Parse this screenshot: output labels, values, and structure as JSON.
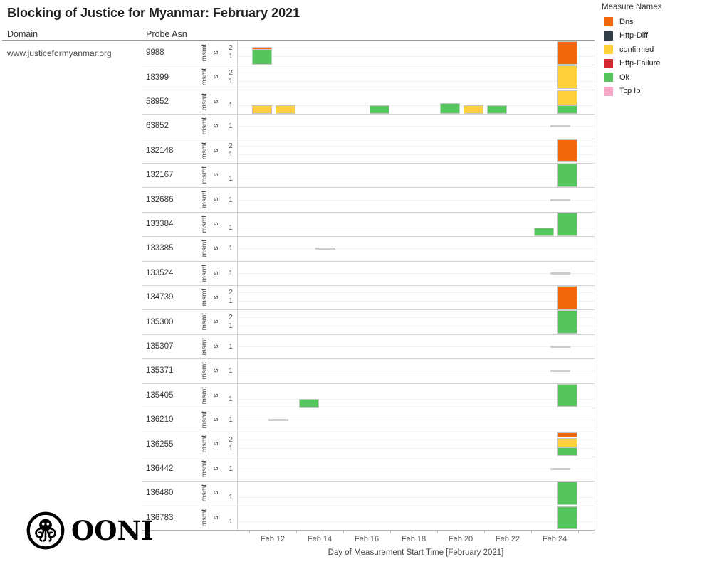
{
  "title": "Blocking of Justice for Myanmar: February 2021",
  "columns": {
    "domain_header": "Domain",
    "asn_header": "Probe Asn"
  },
  "domain": "www.justiceformyanmar.org",
  "y_axis_title_lines": [
    "msmt",
    "s"
  ],
  "x_axis": {
    "title": "Day of Measurement Start Time [February 2021]",
    "tick_labels": [
      "Feb 12",
      "Feb 14",
      "Feb 16",
      "Feb 18",
      "Feb 20",
      "Feb 22",
      "Feb 24"
    ],
    "labeled_days": [
      12,
      14,
      16,
      18,
      20,
      22,
      24
    ],
    "day_range": [
      11,
      25
    ]
  },
  "legend": {
    "title": "Measure Names",
    "items": [
      {
        "label": "Dns",
        "color": "#f3680d"
      },
      {
        "label": "Http-Diff",
        "color": "#333e48"
      },
      {
        "label": "confirmed",
        "color": "#fdd03c"
      },
      {
        "label": "Http-Failure",
        "color": "#d4262e"
      },
      {
        "label": "Ok",
        "color": "#55c55e"
      },
      {
        "label": "Tcp Ip",
        "color": "#f5a8c7"
      }
    ]
  },
  "logo_text": "OONI",
  "chart_data": {
    "type": "bar",
    "stacked": true,
    "title": "Blocking of Justice for Myanmar: February 2021",
    "xlabel": "Day of Measurement Start Time [February 2021]",
    "ylabel": "msmts",
    "x_unit": "day of February 2021",
    "note": "Small-multiple rows, one per Probe ASN; stacked bars count measurements per day; bars reaching full row height are clipped at the row top (value >= 2); gray dashes mark days with an empty/zero-height mark at level 1.",
    "measure_colors": {
      "Dns": "#f3680d",
      "Http-Diff": "#333e48",
      "confirmed": "#fdd03c",
      "Http-Failure": "#d4262e",
      "Ok": "#55c55e",
      "Tcp Ip": "#f5a8c7"
    },
    "rows": [
      {
        "asn": "9988",
        "ticks": [
          2,
          1
        ],
        "tick_pos": "pair",
        "marks": [
          {
            "day": 11,
            "stack": [
              {
                "measure": "Ok",
                "value": 1.75
              },
              {
                "measure": "Dns",
                "value": 0.35
              }
            ]
          },
          {
            "day": 24,
            "clipped": true,
            "stack": [
              {
                "measure": "Dns",
                "value": 2.85
              }
            ]
          }
        ]
      },
      {
        "asn": "18399",
        "ticks": [
          2,
          1
        ],
        "tick_pos": "pair",
        "marks": [
          {
            "day": 24,
            "clipped": true,
            "stack": [
              {
                "measure": "confirmed",
                "value": 2.85
              }
            ]
          }
        ]
      },
      {
        "asn": "58952",
        "ticks": [
          1
        ],
        "tick_pos": "low",
        "marks": [
          {
            "day": 11,
            "stack": [
              {
                "measure": "confirmed",
                "value": 1
              }
            ]
          },
          {
            "day": 12,
            "stack": [
              {
                "measure": "confirmed",
                "value": 1
              }
            ]
          },
          {
            "day": 16,
            "stack": [
              {
                "measure": "Ok",
                "value": 1
              }
            ]
          },
          {
            "day": 19,
            "stack": [
              {
                "measure": "Ok",
                "value": 1.2
              }
            ]
          },
          {
            "day": 20,
            "stack": [
              {
                "measure": "confirmed",
                "value": 1
              }
            ]
          },
          {
            "day": 21,
            "stack": [
              {
                "measure": "Ok",
                "value": 1
              }
            ]
          },
          {
            "day": 24,
            "clipped": true,
            "stack": [
              {
                "measure": "Ok",
                "value": 1
              },
              {
                "measure": "confirmed",
                "value": 1.85
              }
            ]
          }
        ]
      },
      {
        "asn": "63852",
        "ticks": [
          1
        ],
        "tick_pos": "center",
        "marks": [
          {
            "day": 24,
            "empty_marker": true
          }
        ]
      },
      {
        "asn": "132148",
        "ticks": [
          2,
          1
        ],
        "tick_pos": "pair",
        "marks": [
          {
            "day": 24,
            "clipped": true,
            "stack": [
              {
                "measure": "Dns",
                "value": 2.85
              }
            ]
          }
        ]
      },
      {
        "asn": "132167",
        "ticks": [
          1
        ],
        "tick_pos": "low",
        "marks": [
          {
            "day": 24,
            "clipped": true,
            "stack": [
              {
                "measure": "Ok",
                "value": 2.85
              }
            ]
          }
        ]
      },
      {
        "asn": "132686",
        "ticks": [
          1
        ],
        "tick_pos": "center",
        "marks": [
          {
            "day": 24,
            "empty_marker": true
          }
        ]
      },
      {
        "asn": "133384",
        "ticks": [
          1
        ],
        "tick_pos": "low",
        "marks": [
          {
            "day": 23,
            "stack": [
              {
                "measure": "Ok",
                "value": 1
              }
            ]
          },
          {
            "day": 24,
            "clipped": true,
            "stack": [
              {
                "measure": "Ok",
                "value": 2.85
              }
            ]
          }
        ]
      },
      {
        "asn": "133385",
        "ticks": [
          1
        ],
        "tick_pos": "center",
        "marks": [
          {
            "day": 14,
            "empty_marker": true
          }
        ]
      },
      {
        "asn": "133524",
        "ticks": [
          1
        ],
        "tick_pos": "center",
        "marks": [
          {
            "day": 24,
            "empty_marker": true
          }
        ]
      },
      {
        "asn": "134739",
        "ticks": [
          2,
          1
        ],
        "tick_pos": "pair",
        "marks": [
          {
            "day": 24,
            "clipped": true,
            "stack": [
              {
                "measure": "Dns",
                "value": 2.85
              }
            ]
          }
        ]
      },
      {
        "asn": "135300",
        "ticks": [
          2,
          1
        ],
        "tick_pos": "pair",
        "marks": [
          {
            "day": 24,
            "clipped": true,
            "stack": [
              {
                "measure": "Ok",
                "value": 2.85
              }
            ]
          }
        ]
      },
      {
        "asn": "135307",
        "ticks": [
          1
        ],
        "tick_pos": "center",
        "marks": [
          {
            "day": 24,
            "empty_marker": true
          }
        ]
      },
      {
        "asn": "135371",
        "ticks": [
          1
        ],
        "tick_pos": "center",
        "marks": [
          {
            "day": 24,
            "empty_marker": true
          }
        ]
      },
      {
        "asn": "135405",
        "ticks": [
          1
        ],
        "tick_pos": "low",
        "marks": [
          {
            "day": 13,
            "stack": [
              {
                "measure": "Ok",
                "value": 1
              }
            ]
          },
          {
            "day": 24,
            "clipped": true,
            "stack": [
              {
                "measure": "Ok",
                "value": 2.85
              }
            ]
          }
        ]
      },
      {
        "asn": "136210",
        "ticks": [
          1
        ],
        "tick_pos": "center",
        "marks": [
          {
            "day": 12,
            "empty_marker": true
          }
        ]
      },
      {
        "asn": "136255",
        "ticks": [
          2,
          1
        ],
        "tick_pos": "pair",
        "marks": [
          {
            "day": 24,
            "clipped": true,
            "stack": [
              {
                "measure": "Ok",
                "value": 1
              },
              {
                "measure": "confirmed",
                "value": 1.15
              },
              {
                "measure": "Dns",
                "value": 0.7
              }
            ]
          }
        ]
      },
      {
        "asn": "136442",
        "ticks": [
          1
        ],
        "tick_pos": "center",
        "marks": [
          {
            "day": 24,
            "empty_marker": true
          }
        ]
      },
      {
        "asn": "136480",
        "ticks": [
          1
        ],
        "tick_pos": "low",
        "marks": [
          {
            "day": 24,
            "clipped": true,
            "stack": [
              {
                "measure": "Ok",
                "value": 2.85
              }
            ]
          }
        ]
      },
      {
        "asn": "136783",
        "ticks": [
          1
        ],
        "tick_pos": "low",
        "marks": [
          {
            "day": 24,
            "clipped": true,
            "stack": [
              {
                "measure": "Ok",
                "value": 2.85
              }
            ]
          }
        ]
      }
    ]
  }
}
